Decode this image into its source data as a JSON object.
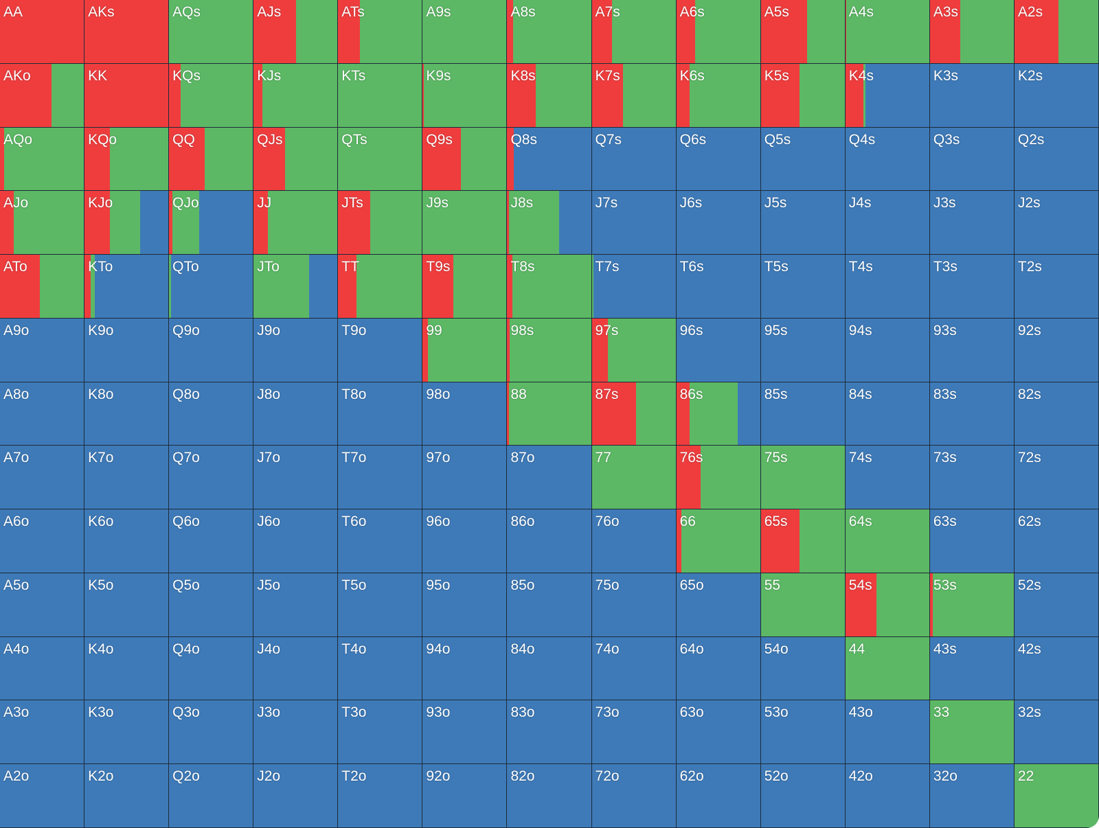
{
  "grid": {
    "rows": [
      [
        {
          "hand": "AA",
          "raise": 100,
          "call": 0,
          "fold": 0
        },
        {
          "hand": "AKs",
          "raise": 100,
          "call": 0,
          "fold": 0
        },
        {
          "hand": "AQs",
          "raise": 0,
          "call": 100,
          "fold": 0
        },
        {
          "hand": "AJs",
          "raise": 50,
          "call": 50,
          "fold": 0
        },
        {
          "hand": "ATs",
          "raise": 26,
          "call": 74,
          "fold": 0
        },
        {
          "hand": "A9s",
          "raise": 0,
          "call": 100,
          "fold": 0
        },
        {
          "hand": "A8s",
          "raise": 7,
          "call": 93,
          "fold": 0
        },
        {
          "hand": "A7s",
          "raise": 24,
          "call": 76,
          "fold": 0
        },
        {
          "hand": "A6s",
          "raise": 22,
          "call": 78,
          "fold": 0
        },
        {
          "hand": "A5s",
          "raise": 55,
          "call": 45,
          "fold": 0
        },
        {
          "hand": "A4s",
          "raise": 1,
          "call": 99,
          "fold": 0
        },
        {
          "hand": "A3s",
          "raise": 36,
          "call": 64,
          "fold": 0
        },
        {
          "hand": "A2s",
          "raise": 52,
          "call": 48,
          "fold": 0
        }
      ],
      [
        {
          "hand": "AKo",
          "raise": 61,
          "call": 39,
          "fold": 0
        },
        {
          "hand": "KK",
          "raise": 100,
          "call": 0,
          "fold": 0
        },
        {
          "hand": "KQs",
          "raise": 14,
          "call": 86,
          "fold": 0
        },
        {
          "hand": "KJs",
          "raise": 10,
          "call": 90,
          "fold": 0
        },
        {
          "hand": "KTs",
          "raise": 0,
          "call": 100,
          "fold": 0
        },
        {
          "hand": "K9s",
          "raise": 1,
          "call": 99,
          "fold": 0
        },
        {
          "hand": "K8s",
          "raise": 34,
          "call": 66,
          "fold": 0
        },
        {
          "hand": "K7s",
          "raise": 37,
          "call": 63,
          "fold": 0
        },
        {
          "hand": "K6s",
          "raise": 16,
          "call": 84,
          "fold": 0
        },
        {
          "hand": "K5s",
          "raise": 46,
          "call": 54,
          "fold": 0
        },
        {
          "hand": "K4s",
          "raise": 21,
          "call": 3,
          "fold": 76
        },
        {
          "hand": "K3s",
          "raise": 0,
          "call": 0,
          "fold": 100
        },
        {
          "hand": "K2s",
          "raise": 0,
          "call": 0,
          "fold": 100
        }
      ],
      [
        {
          "hand": "AQo",
          "raise": 5,
          "call": 95,
          "fold": 0
        },
        {
          "hand": "KQo",
          "raise": 30,
          "call": 70,
          "fold": 0
        },
        {
          "hand": "QQ",
          "raise": 42,
          "call": 58,
          "fold": 0
        },
        {
          "hand": "QJs",
          "raise": 37,
          "call": 63,
          "fold": 0
        },
        {
          "hand": "QTs",
          "raise": 0,
          "call": 100,
          "fold": 0
        },
        {
          "hand": "Q9s",
          "raise": 45,
          "call": 55,
          "fold": 0
        },
        {
          "hand": "Q8s",
          "raise": 8,
          "call": 0,
          "fold": 92
        },
        {
          "hand": "Q7s",
          "raise": 0,
          "call": 0,
          "fold": 100
        },
        {
          "hand": "Q6s",
          "raise": 0,
          "call": 0,
          "fold": 100
        },
        {
          "hand": "Q5s",
          "raise": 0,
          "call": 0,
          "fold": 100
        },
        {
          "hand": "Q4s",
          "raise": 0,
          "call": 0,
          "fold": 100
        },
        {
          "hand": "Q3s",
          "raise": 0,
          "call": 0,
          "fold": 100
        },
        {
          "hand": "Q2s",
          "raise": 0,
          "call": 0,
          "fold": 100
        }
      ],
      [
        {
          "hand": "AJo",
          "raise": 16,
          "call": 84,
          "fold": 0
        },
        {
          "hand": "KJo",
          "raise": 30,
          "call": 36,
          "fold": 34
        },
        {
          "hand": "QJo",
          "raise": 4,
          "call": 32,
          "fold": 64
        },
        {
          "hand": "JJ",
          "raise": 17,
          "call": 83,
          "fold": 0
        },
        {
          "hand": "JTs",
          "raise": 38,
          "call": 62,
          "fold": 0
        },
        {
          "hand": "J9s",
          "raise": 0,
          "call": 100,
          "fold": 0
        },
        {
          "hand": "J8s",
          "raise": 2,
          "call": 59,
          "fold": 39
        },
        {
          "hand": "J7s",
          "raise": 0,
          "call": 0,
          "fold": 100
        },
        {
          "hand": "J6s",
          "raise": 0,
          "call": 0,
          "fold": 100
        },
        {
          "hand": "J5s",
          "raise": 0,
          "call": 0,
          "fold": 100
        },
        {
          "hand": "J4s",
          "raise": 0,
          "call": 0,
          "fold": 100
        },
        {
          "hand": "J3s",
          "raise": 0,
          "call": 0,
          "fold": 100
        },
        {
          "hand": "J2s",
          "raise": 0,
          "call": 0,
          "fold": 100
        }
      ],
      [
        {
          "hand": "ATo",
          "raise": 47,
          "call": 53,
          "fold": 0
        },
        {
          "hand": "KTo",
          "raise": 7,
          "call": 5,
          "fold": 88
        },
        {
          "hand": "QTo",
          "raise": 0,
          "call": 2,
          "fold": 98
        },
        {
          "hand": "JTo",
          "raise": 0,
          "call": 66,
          "fold": 34
        },
        {
          "hand": "TT",
          "raise": 22,
          "call": 78,
          "fold": 0
        },
        {
          "hand": "T9s",
          "raise": 36,
          "call": 64,
          "fold": 0
        },
        {
          "hand": "T8s",
          "raise": 6,
          "call": 94,
          "fold": 0
        },
        {
          "hand": "T7s",
          "raise": 0,
          "call": 2,
          "fold": 98
        },
        {
          "hand": "T6s",
          "raise": 0,
          "call": 0,
          "fold": 100
        },
        {
          "hand": "T5s",
          "raise": 0,
          "call": 0,
          "fold": 100
        },
        {
          "hand": "T4s",
          "raise": 0,
          "call": 0,
          "fold": 100
        },
        {
          "hand": "T3s",
          "raise": 0,
          "call": 0,
          "fold": 100
        },
        {
          "hand": "T2s",
          "raise": 0,
          "call": 0,
          "fold": 100
        }
      ],
      [
        {
          "hand": "A9o",
          "raise": 0,
          "call": 0,
          "fold": 100
        },
        {
          "hand": "K9o",
          "raise": 0,
          "call": 0,
          "fold": 100
        },
        {
          "hand": "Q9o",
          "raise": 0,
          "call": 0,
          "fold": 100
        },
        {
          "hand": "J9o",
          "raise": 0,
          "call": 0,
          "fold": 100
        },
        {
          "hand": "T9o",
          "raise": 0,
          "call": 0,
          "fold": 100
        },
        {
          "hand": "99",
          "raise": 6,
          "call": 94,
          "fold": 0
        },
        {
          "hand": "98s",
          "raise": 3,
          "call": 97,
          "fold": 0
        },
        {
          "hand": "97s",
          "raise": 19,
          "call": 81,
          "fold": 0
        },
        {
          "hand": "96s",
          "raise": 0,
          "call": 0,
          "fold": 100
        },
        {
          "hand": "95s",
          "raise": 0,
          "call": 0,
          "fold": 100
        },
        {
          "hand": "94s",
          "raise": 0,
          "call": 0,
          "fold": 100
        },
        {
          "hand": "93s",
          "raise": 0,
          "call": 0,
          "fold": 100
        },
        {
          "hand": "92s",
          "raise": 0,
          "call": 0,
          "fold": 100
        }
      ],
      [
        {
          "hand": "A8o",
          "raise": 0,
          "call": 0,
          "fold": 100
        },
        {
          "hand": "K8o",
          "raise": 0,
          "call": 0,
          "fold": 100
        },
        {
          "hand": "Q8o",
          "raise": 0,
          "call": 0,
          "fold": 100
        },
        {
          "hand": "J8o",
          "raise": 0,
          "call": 0,
          "fold": 100
        },
        {
          "hand": "T8o",
          "raise": 0,
          "call": 0,
          "fold": 100
        },
        {
          "hand": "98o",
          "raise": 0,
          "call": 0,
          "fold": 100
        },
        {
          "hand": "88",
          "raise": 2,
          "call": 98,
          "fold": 0
        },
        {
          "hand": "87s",
          "raise": 52,
          "call": 48,
          "fold": 0
        },
        {
          "hand": "86s",
          "raise": 16,
          "call": 57,
          "fold": 27
        },
        {
          "hand": "85s",
          "raise": 0,
          "call": 0,
          "fold": 100
        },
        {
          "hand": "84s",
          "raise": 0,
          "call": 0,
          "fold": 100
        },
        {
          "hand": "83s",
          "raise": 0,
          "call": 0,
          "fold": 100
        },
        {
          "hand": "82s",
          "raise": 0,
          "call": 0,
          "fold": 100
        }
      ],
      [
        {
          "hand": "A7o",
          "raise": 0,
          "call": 0,
          "fold": 100
        },
        {
          "hand": "K7o",
          "raise": 0,
          "call": 0,
          "fold": 100
        },
        {
          "hand": "Q7o",
          "raise": 0,
          "call": 0,
          "fold": 100
        },
        {
          "hand": "J7o",
          "raise": 0,
          "call": 0,
          "fold": 100
        },
        {
          "hand": "T7o",
          "raise": 0,
          "call": 0,
          "fold": 100
        },
        {
          "hand": "97o",
          "raise": 0,
          "call": 0,
          "fold": 100
        },
        {
          "hand": "87o",
          "raise": 0,
          "call": 0,
          "fold": 100
        },
        {
          "hand": "77",
          "raise": 0,
          "call": 100,
          "fold": 0
        },
        {
          "hand": "76s",
          "raise": 29,
          "call": 71,
          "fold": 0
        },
        {
          "hand": "75s",
          "raise": 0,
          "call": 100,
          "fold": 0
        },
        {
          "hand": "74s",
          "raise": 0,
          "call": 0,
          "fold": 100
        },
        {
          "hand": "73s",
          "raise": 0,
          "call": 0,
          "fold": 100
        },
        {
          "hand": "72s",
          "raise": 0,
          "call": 0,
          "fold": 100
        }
      ],
      [
        {
          "hand": "A6o",
          "raise": 0,
          "call": 0,
          "fold": 100
        },
        {
          "hand": "K6o",
          "raise": 0,
          "call": 0,
          "fold": 100
        },
        {
          "hand": "Q6o",
          "raise": 0,
          "call": 0,
          "fold": 100
        },
        {
          "hand": "J6o",
          "raise": 0,
          "call": 0,
          "fold": 100
        },
        {
          "hand": "T6o",
          "raise": 0,
          "call": 0,
          "fold": 100
        },
        {
          "hand": "96o",
          "raise": 0,
          "call": 0,
          "fold": 100
        },
        {
          "hand": "86o",
          "raise": 0,
          "call": 0,
          "fold": 100
        },
        {
          "hand": "76o",
          "raise": 0,
          "call": 0,
          "fold": 100
        },
        {
          "hand": "66",
          "raise": 6,
          "call": 94,
          "fold": 0
        },
        {
          "hand": "65s",
          "raise": 46,
          "call": 54,
          "fold": 0
        },
        {
          "hand": "64s",
          "raise": 0,
          "call": 100,
          "fold": 0
        },
        {
          "hand": "63s",
          "raise": 0,
          "call": 0,
          "fold": 100
        },
        {
          "hand": "62s",
          "raise": 0,
          "call": 0,
          "fold": 100
        }
      ],
      [
        {
          "hand": "A5o",
          "raise": 0,
          "call": 0,
          "fold": 100
        },
        {
          "hand": "K5o",
          "raise": 0,
          "call": 0,
          "fold": 100
        },
        {
          "hand": "Q5o",
          "raise": 0,
          "call": 0,
          "fold": 100
        },
        {
          "hand": "J5o",
          "raise": 0,
          "call": 0,
          "fold": 100
        },
        {
          "hand": "T5o",
          "raise": 0,
          "call": 0,
          "fold": 100
        },
        {
          "hand": "95o",
          "raise": 0,
          "call": 0,
          "fold": 100
        },
        {
          "hand": "85o",
          "raise": 0,
          "call": 0,
          "fold": 100
        },
        {
          "hand": "75o",
          "raise": 0,
          "call": 0,
          "fold": 100
        },
        {
          "hand": "65o",
          "raise": 0,
          "call": 0,
          "fold": 100
        },
        {
          "hand": "55",
          "raise": 0,
          "call": 100,
          "fold": 0
        },
        {
          "hand": "54s",
          "raise": 37,
          "call": 63,
          "fold": 0
        },
        {
          "hand": "53s",
          "raise": 3,
          "call": 97,
          "fold": 0
        },
        {
          "hand": "52s",
          "raise": 0,
          "call": 0,
          "fold": 100
        }
      ],
      [
        {
          "hand": "A4o",
          "raise": 0,
          "call": 0,
          "fold": 100
        },
        {
          "hand": "K4o",
          "raise": 0,
          "call": 0,
          "fold": 100
        },
        {
          "hand": "Q4o",
          "raise": 0,
          "call": 0,
          "fold": 100
        },
        {
          "hand": "J4o",
          "raise": 0,
          "call": 0,
          "fold": 100
        },
        {
          "hand": "T4o",
          "raise": 0,
          "call": 0,
          "fold": 100
        },
        {
          "hand": "94o",
          "raise": 0,
          "call": 0,
          "fold": 100
        },
        {
          "hand": "84o",
          "raise": 0,
          "call": 0,
          "fold": 100
        },
        {
          "hand": "74o",
          "raise": 0,
          "call": 0,
          "fold": 100
        },
        {
          "hand": "64o",
          "raise": 0,
          "call": 0,
          "fold": 100
        },
        {
          "hand": "54o",
          "raise": 0,
          "call": 0,
          "fold": 100
        },
        {
          "hand": "44",
          "raise": 0,
          "call": 100,
          "fold": 0
        },
        {
          "hand": "43s",
          "raise": 0,
          "call": 0,
          "fold": 100
        },
        {
          "hand": "42s",
          "raise": 0,
          "call": 0,
          "fold": 100
        }
      ],
      [
        {
          "hand": "A3o",
          "raise": 0,
          "call": 0,
          "fold": 100
        },
        {
          "hand": "K3o",
          "raise": 0,
          "call": 0,
          "fold": 100
        },
        {
          "hand": "Q3o",
          "raise": 0,
          "call": 0,
          "fold": 100
        },
        {
          "hand": "J3o",
          "raise": 0,
          "call": 0,
          "fold": 100
        },
        {
          "hand": "T3o",
          "raise": 0,
          "call": 0,
          "fold": 100
        },
        {
          "hand": "93o",
          "raise": 0,
          "call": 0,
          "fold": 100
        },
        {
          "hand": "83o",
          "raise": 0,
          "call": 0,
          "fold": 100
        },
        {
          "hand": "73o",
          "raise": 0,
          "call": 0,
          "fold": 100
        },
        {
          "hand": "63o",
          "raise": 0,
          "call": 0,
          "fold": 100
        },
        {
          "hand": "53o",
          "raise": 0,
          "call": 0,
          "fold": 100
        },
        {
          "hand": "43o",
          "raise": 0,
          "call": 0,
          "fold": 100
        },
        {
          "hand": "33",
          "raise": 0,
          "call": 100,
          "fold": 0
        },
        {
          "hand": "32s",
          "raise": 0,
          "call": 0,
          "fold": 100
        }
      ],
      [
        {
          "hand": "A2o",
          "raise": 0,
          "call": 0,
          "fold": 100
        },
        {
          "hand": "K2o",
          "raise": 0,
          "call": 0,
          "fold": 100
        },
        {
          "hand": "Q2o",
          "raise": 0,
          "call": 0,
          "fold": 100
        },
        {
          "hand": "J2o",
          "raise": 0,
          "call": 0,
          "fold": 100
        },
        {
          "hand": "T2o",
          "raise": 0,
          "call": 0,
          "fold": 100
        },
        {
          "hand": "92o",
          "raise": 0,
          "call": 0,
          "fold": 100
        },
        {
          "hand": "82o",
          "raise": 0,
          "call": 0,
          "fold": 100
        },
        {
          "hand": "72o",
          "raise": 0,
          "call": 0,
          "fold": 100
        },
        {
          "hand": "62o",
          "raise": 0,
          "call": 0,
          "fold": 100
        },
        {
          "hand": "52o",
          "raise": 0,
          "call": 0,
          "fold": 100
        },
        {
          "hand": "42o",
          "raise": 0,
          "call": 0,
          "fold": 100
        },
        {
          "hand": "32o",
          "raise": 0,
          "call": 0,
          "fold": 100
        },
        {
          "hand": "22",
          "raise": 0,
          "call": 100,
          "fold": 0
        }
      ]
    ]
  }
}
